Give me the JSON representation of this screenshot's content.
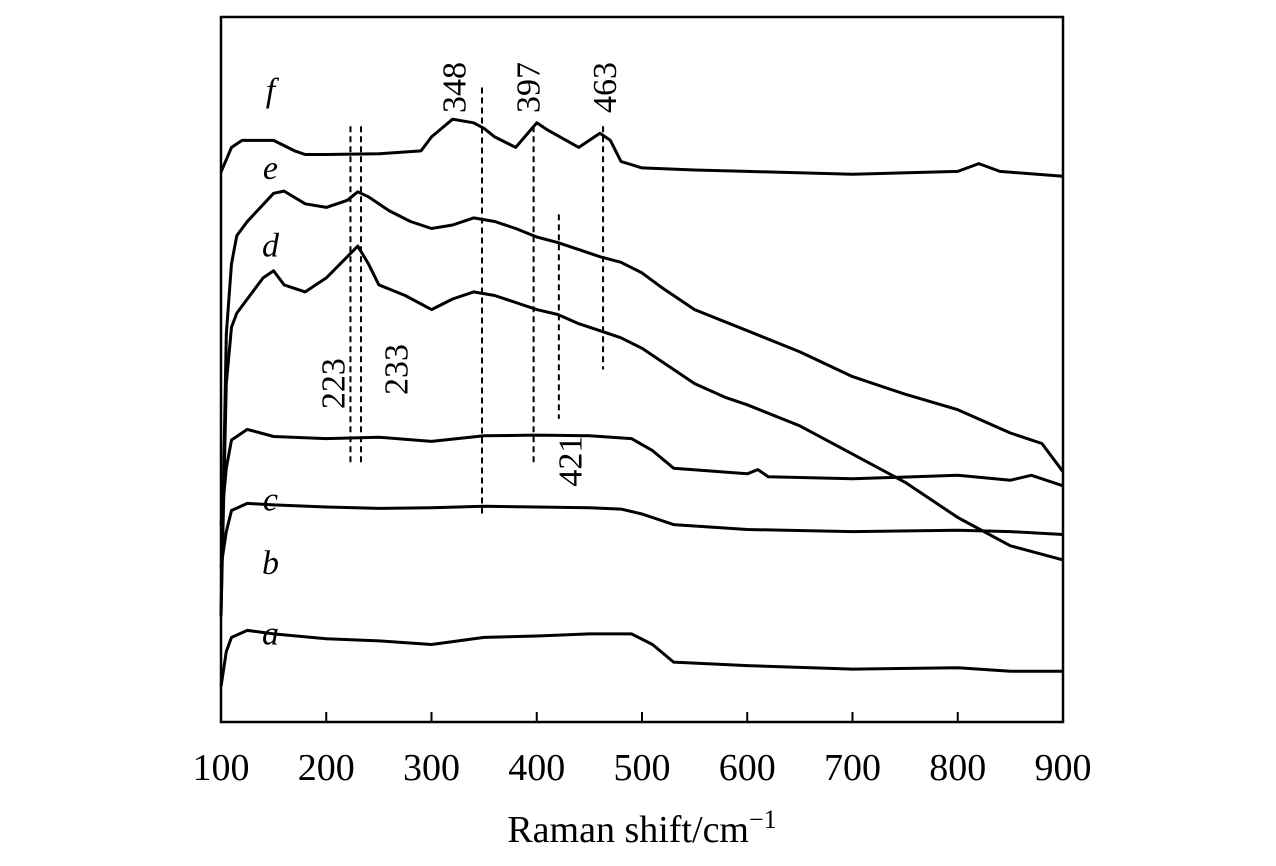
{
  "chart_data": {
    "type": "line",
    "title": "",
    "xlabel": "Raman shift/cm",
    "xlabel_sup": "−1",
    "ylabel": "",
    "xlim": [
      100,
      900
    ],
    "xticks": [
      100,
      200,
      300,
      400,
      500,
      600,
      700,
      800,
      900
    ],
    "xtick_labels": [
      "100",
      "200",
      "300",
      "400",
      "500",
      "600",
      "700",
      "800",
      "900"
    ],
    "y_axis_ticks": false,
    "ylim": [
      0,
      100
    ],
    "grid": false,
    "legend": "curve letters at left end of each spectrum",
    "series": [
      {
        "name": "a",
        "x": [
          100,
          105,
          110,
          125,
          150,
          200,
          250,
          300,
          350,
          400,
          450,
          490,
          510,
          530,
          600,
          700,
          800,
          850,
          900
        ],
        "y": [
          5,
          10,
          12,
          13,
          12.5,
          11.8,
          11.5,
          11,
          12,
          12.2,
          12.5,
          12.5,
          11,
          8.5,
          8,
          7.5,
          7.7,
          7.2,
          7.2
        ]
      },
      {
        "name": "b",
        "x": [
          100,
          105,
          110,
          125,
          150,
          200,
          250,
          300,
          350,
          400,
          450,
          480,
          500,
          530,
          600,
          700,
          800,
          850,
          900
        ],
        "y": [
          22,
          27,
          30,
          31,
          30.8,
          30.5,
          30.3,
          30.4,
          30.6,
          30.5,
          30.4,
          30.2,
          29.5,
          28,
          27.3,
          27,
          27.2,
          27,
          26.6
        ]
      },
      {
        "name": "c",
        "x": [
          100,
          105,
          110,
          125,
          150,
          200,
          250,
          300,
          350,
          400,
          450,
          490,
          510,
          530,
          600,
          610,
          620,
          700,
          800,
          850,
          870,
          900
        ],
        "y": [
          28,
          36,
          40,
          41.5,
          40.5,
          40.2,
          40.4,
          39.8,
          40.6,
          40.7,
          40.6,
          40.2,
          38.5,
          36,
          35.2,
          35.8,
          34.8,
          34.5,
          35,
          34.3,
          35,
          33.5
        ]
      },
      {
        "name": "d",
        "x": [
          100,
          105,
          110,
          115,
          125,
          140,
          150,
          160,
          180,
          200,
          220,
          230,
          240,
          250,
          275,
          300,
          320,
          340,
          360,
          380,
          400,
          420,
          440,
          460,
          480,
          500,
          520,
          550,
          580,
          600,
          650,
          700,
          750,
          800,
          850,
          900
        ],
        "y": [
          15,
          48,
          56,
          58,
          60,
          63,
          64,
          62,
          61,
          63,
          66,
          67.5,
          65,
          62,
          60.5,
          58.5,
          60,
          61,
          60.5,
          59.5,
          58.5,
          57.8,
          56.5,
          55.5,
          54.5,
          53,
          51,
          48,
          46,
          45,
          42,
          38,
          34,
          29,
          25,
          23
        ]
      },
      {
        "name": "e",
        "x": [
          100,
          105,
          110,
          115,
          125,
          150,
          160,
          180,
          200,
          220,
          230,
          240,
          260,
          280,
          300,
          320,
          340,
          360,
          380,
          400,
          420,
          440,
          460,
          480,
          500,
          520,
          550,
          600,
          650,
          700,
          750,
          800,
          850,
          880,
          900
        ],
        "y": [
          15,
          55,
          65,
          69,
          71,
          75,
          75.3,
          73.5,
          73,
          74,
          75.2,
          74.5,
          72.5,
          71,
          70,
          70.5,
          71.5,
          71,
          70,
          68.8,
          68,
          67,
          66,
          65.2,
          63.7,
          61.5,
          58.5,
          55.5,
          52.5,
          49,
          46.5,
          44.3,
          41,
          39.5,
          35.5
        ]
      },
      {
        "name": "f",
        "x": [
          100,
          110,
          120,
          150,
          170,
          180,
          200,
          250,
          290,
          300,
          320,
          340,
          350,
          360,
          380,
          400,
          410,
          440,
          460,
          470,
          480,
          500,
          550,
          600,
          700,
          800,
          820,
          840,
          900
        ],
        "y": [
          78,
          81.5,
          82.5,
          82.5,
          81,
          80.5,
          80.5,
          80.6,
          81,
          83,
          85.5,
          85,
          84.2,
          83,
          81.5,
          85,
          84,
          81.5,
          83.5,
          82.5,
          79.5,
          78.6,
          78.3,
          78.1,
          77.7,
          78.1,
          79.2,
          78.1,
          77.4
        ]
      }
    ],
    "dashed_lines": [
      {
        "x": 223,
        "y_top": 84.5,
        "y_bottom": 36.5
      },
      {
        "x": 233,
        "y_top": 84.5,
        "y_bottom": 36.5
      },
      {
        "x": 348,
        "y_top": 90,
        "y_bottom": 29.5
      },
      {
        "x": 397,
        "y_top": 84.5,
        "y_bottom": 36.5
      },
      {
        "x": 421,
        "y_top": 72,
        "y_bottom": 43
      },
      {
        "x": 463,
        "y_top": 84.5,
        "y_bottom": 50
      }
    ],
    "annotations": [
      {
        "text": "223",
        "x": 210,
        "y": 48
      },
      {
        "text": "233",
        "x": 270,
        "y": 50
      },
      {
        "text": "348",
        "x": 325,
        "y": 90
      },
      {
        "text": "397",
        "x": 395,
        "y": 90
      },
      {
        "text": "463",
        "x": 468,
        "y": 90
      },
      {
        "text": "421",
        "x": 435,
        "y": 37
      }
    ],
    "curve_labels": [
      {
        "text": "a",
        "x": 147,
        "y": 11
      },
      {
        "text": "b",
        "x": 147,
        "y": 21
      },
      {
        "text": "c",
        "x": 147,
        "y": 30
      },
      {
        "text": "d",
        "x": 147,
        "y": 66
      },
      {
        "text": "e",
        "x": 147,
        "y": 77
      },
      {
        "text": "f",
        "x": 147,
        "y": 88
      }
    ]
  }
}
